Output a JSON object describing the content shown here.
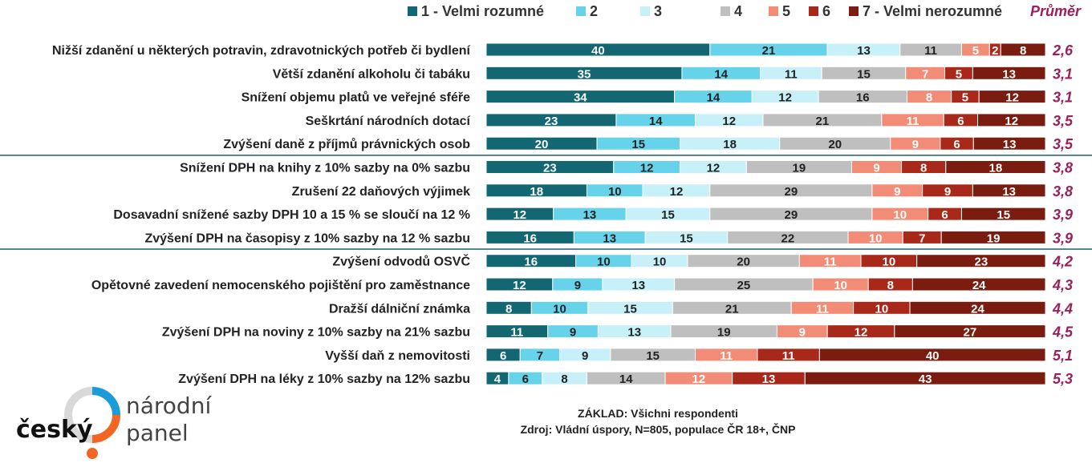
{
  "chart_data": {
    "type": "bar",
    "orientation": "horizontal",
    "stacked": true,
    "percent": true,
    "legend_position": "top",
    "grid": false,
    "series": [
      {
        "name": "1 - Velmi rozumné",
        "color": "#136773"
      },
      {
        "name": "2",
        "color": "#66D3EA"
      },
      {
        "name": "3",
        "color": "#C8F0F8"
      },
      {
        "name": "4",
        "color": "#BFBFBF"
      },
      {
        "name": "5",
        "color": "#F28C76"
      },
      {
        "name": "6",
        "color": "#A8281A"
      },
      {
        "name": "7 - Velmi nerozumné",
        "color": "#7A1C10"
      }
    ],
    "average_header": "Průměr",
    "average_color": "#9B1F5A",
    "categories": [
      "Nižší zdanění u některých potravin, zdravotnických potřeb či bydlení",
      "Větší zdanění alkoholu či tabáku",
      "Snížení objemu platů ve veřejné sféře",
      "Seškrtání národních dotací",
      "Zvýšení daně z příjmů právnických osob",
      "Snížení DPH na knihy z 10% sazby na 0% sazbu",
      "Zrušení 22 daňových výjimek",
      "Dosavadní snížené sazby DPH 10 a 15 % se sloučí na 12 %",
      "Zvýšení DPH na časopisy z 10% sazby na 12 % sazbu",
      "Zvýšení odvodů OSVČ",
      "Opětovné zavedení nemocenského pojištění pro zaměstnance",
      "Dražší dálniční známka",
      "Zvýšení DPH na noviny z 10% sazby na 21% sazbu",
      "Vyšší daň z nemovitosti",
      "Zvýšení DPH na léky z 10% sazby na 12% sazbu"
    ],
    "values": [
      [
        40,
        21,
        13,
        11,
        5,
        2,
        8
      ],
      [
        35,
        14,
        11,
        15,
        7,
        5,
        13
      ],
      [
        34,
        14,
        12,
        16,
        8,
        5,
        12
      ],
      [
        23,
        14,
        12,
        21,
        11,
        6,
        12
      ],
      [
        20,
        15,
        18,
        20,
        9,
        6,
        13
      ],
      [
        23,
        12,
        12,
        19,
        9,
        8,
        18
      ],
      [
        18,
        10,
        12,
        29,
        9,
        9,
        13
      ],
      [
        12,
        13,
        15,
        29,
        10,
        6,
        15
      ],
      [
        16,
        13,
        15,
        22,
        10,
        7,
        19
      ],
      [
        16,
        10,
        10,
        20,
        11,
        10,
        23
      ],
      [
        12,
        9,
        13,
        25,
        10,
        8,
        24
      ],
      [
        8,
        10,
        15,
        21,
        11,
        10,
        24
      ],
      [
        11,
        9,
        13,
        19,
        9,
        12,
        27
      ],
      [
        6,
        7,
        9,
        15,
        11,
        11,
        40
      ],
      [
        4,
        6,
        8,
        14,
        12,
        13,
        43
      ]
    ],
    "averages": [
      "2,6",
      "3,1",
      "3,1",
      "3,5",
      "3,5",
      "3,8",
      "3,8",
      "3,9",
      "3,9",
      "4,2",
      "4,3",
      "4,4",
      "4,5",
      "5,1",
      "5,3"
    ],
    "group_separators_after_row": [
      4,
      8
    ]
  },
  "footer": {
    "base": "ZÁKLAD: Všichni respondenti",
    "source": "Zdroj: Vládní úspory, N=805, populace ČR 18+, ČNP"
  },
  "logo": {
    "word1": "český",
    "word2": "národní",
    "word3": "panel",
    "colors": {
      "blue": "#1B9BD7",
      "orange": "#F26522",
      "gray": "#D9D9D9"
    }
  }
}
